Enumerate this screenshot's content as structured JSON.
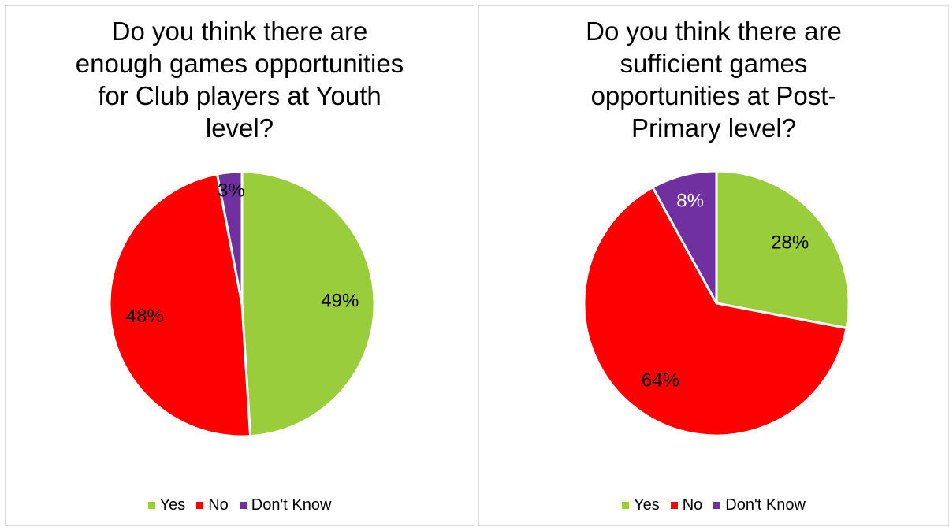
{
  "chart_data": [
    {
      "type": "pie",
      "title": "Do you think there are enough games opportunities for Club players at Youth level?",
      "categories": [
        "Yes",
        "No",
        "Don't Know"
      ],
      "values": [
        49,
        48,
        3
      ],
      "data_labels": [
        "49%",
        "48%",
        "3%"
      ],
      "colors": [
        "#9ACD3C",
        "#FF0000",
        "#7030A0"
      ],
      "legend": {
        "position": "bottom",
        "entries": [
          "Yes",
          "No",
          "Don't Know"
        ]
      }
    },
    {
      "type": "pie",
      "title": "Do you think there are sufficient games opportunities at Post-Primary level?",
      "categories": [
        "Yes",
        "No",
        "Don't Know"
      ],
      "values": [
        28,
        64,
        8
      ],
      "data_labels": [
        "28%",
        "64%",
        "8%"
      ],
      "colors": [
        "#9ACD3C",
        "#FF0000",
        "#7030A0"
      ],
      "legend": {
        "position": "bottom",
        "entries": [
          "Yes",
          "No",
          "Don't Know"
        ]
      }
    }
  ]
}
